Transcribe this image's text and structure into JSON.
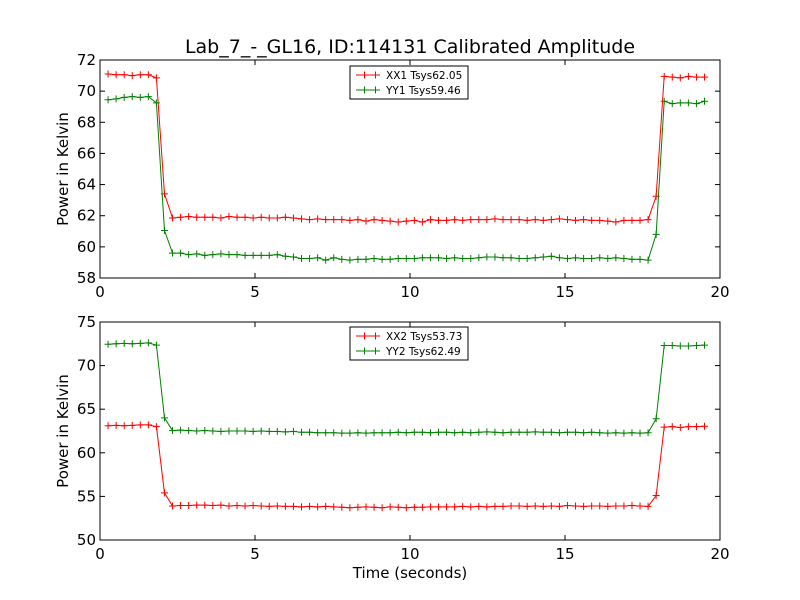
{
  "figure_title": "Lab_7_-_GL16, ID:114131 Calibrated Amplitude",
  "chart_data": [
    {
      "type": "line",
      "title": "",
      "xlabel": "",
      "ylabel": "Power in Kelvin",
      "xlim": [
        0,
        20
      ],
      "ylim": [
        58,
        72
      ],
      "xticks": [
        0,
        5,
        10,
        15,
        20
      ],
      "yticks": [
        58,
        60,
        62,
        64,
        66,
        68,
        70,
        72
      ],
      "grid": false,
      "legend_position": "top-center",
      "marker": "+",
      "x": [
        0.26,
        0.52,
        0.78,
        1.04,
        1.3,
        1.56,
        1.82,
        2.08,
        2.34,
        2.6,
        2.86,
        3.12,
        3.38,
        3.64,
        3.9,
        4.16,
        4.42,
        4.68,
        4.94,
        5.2,
        5.46,
        5.72,
        5.98,
        6.24,
        6.5,
        6.76,
        7.02,
        7.28,
        7.54,
        7.8,
        8.06,
        8.32,
        8.58,
        8.84,
        9.1,
        9.36,
        9.62,
        9.88,
        10.14,
        10.4,
        10.66,
        10.92,
        11.18,
        11.44,
        11.7,
        11.96,
        12.22,
        12.48,
        12.74,
        13.0,
        13.26,
        13.52,
        13.78,
        14.04,
        14.3,
        14.56,
        14.82,
        15.08,
        15.34,
        15.6,
        15.86,
        16.12,
        16.38,
        16.64,
        16.9,
        17.16,
        17.42,
        17.68,
        17.94,
        18.2,
        18.46,
        18.72,
        18.98,
        19.24,
        19.5
      ],
      "series": [
        {
          "name": "XX1 Tsys62.05",
          "color": "#ff0000",
          "values": [
            71.1,
            71.05,
            71.05,
            71.0,
            71.05,
            71.05,
            70.85,
            63.4,
            61.85,
            61.9,
            61.95,
            61.9,
            61.9,
            61.9,
            61.85,
            61.95,
            61.9,
            61.9,
            61.85,
            61.9,
            61.85,
            61.85,
            61.9,
            61.85,
            61.8,
            61.75,
            61.8,
            61.75,
            61.75,
            61.75,
            61.7,
            61.75,
            61.65,
            61.75,
            61.7,
            61.65,
            61.6,
            61.65,
            61.7,
            61.6,
            61.75,
            61.7,
            61.7,
            61.75,
            61.7,
            61.75,
            61.75,
            61.75,
            61.8,
            61.75,
            61.75,
            61.75,
            61.7,
            61.75,
            61.7,
            61.75,
            61.8,
            61.75,
            61.7,
            61.75,
            61.7,
            61.7,
            61.65,
            61.6,
            61.7,
            61.7,
            61.7,
            61.75,
            63.25,
            70.95,
            70.9,
            70.85,
            70.95,
            70.9,
            70.9
          ]
        },
        {
          "name": "YY1 Tsys59.46",
          "color": "#008000",
          "values": [
            69.45,
            69.5,
            69.6,
            69.65,
            69.6,
            69.65,
            69.25,
            61.05,
            59.6,
            59.6,
            59.5,
            59.55,
            59.45,
            59.5,
            59.55,
            59.5,
            59.5,
            59.45,
            59.45,
            59.45,
            59.45,
            59.5,
            59.4,
            59.35,
            59.25,
            59.25,
            59.3,
            59.15,
            59.3,
            59.2,
            59.15,
            59.2,
            59.2,
            59.25,
            59.2,
            59.2,
            59.25,
            59.25,
            59.25,
            59.3,
            59.3,
            59.3,
            59.25,
            59.3,
            59.25,
            59.25,
            59.3,
            59.35,
            59.35,
            59.3,
            59.3,
            59.25,
            59.25,
            59.3,
            59.35,
            59.4,
            59.3,
            59.25,
            59.3,
            59.25,
            59.25,
            59.3,
            59.25,
            59.3,
            59.25,
            59.2,
            59.2,
            59.15,
            60.8,
            69.35,
            69.2,
            69.25,
            69.25,
            69.2,
            69.35
          ]
        }
      ]
    },
    {
      "type": "line",
      "title": "",
      "xlabel": "Time (seconds)",
      "ylabel": "Power in Kelvin",
      "xlim": [
        0,
        20
      ],
      "ylim": [
        50,
        75
      ],
      "xticks": [
        0,
        5,
        10,
        15,
        20
      ],
      "yticks": [
        50,
        55,
        60,
        65,
        70,
        75
      ],
      "grid": false,
      "legend_position": "top-center",
      "marker": "+",
      "x": [
        0.26,
        0.52,
        0.78,
        1.04,
        1.3,
        1.56,
        1.82,
        2.08,
        2.34,
        2.6,
        2.86,
        3.12,
        3.38,
        3.64,
        3.9,
        4.16,
        4.42,
        4.68,
        4.94,
        5.2,
        5.46,
        5.72,
        5.98,
        6.24,
        6.5,
        6.76,
        7.02,
        7.28,
        7.54,
        7.8,
        8.06,
        8.32,
        8.58,
        8.84,
        9.1,
        9.36,
        9.62,
        9.88,
        10.14,
        10.4,
        10.66,
        10.92,
        11.18,
        11.44,
        11.7,
        11.96,
        12.22,
        12.48,
        12.74,
        13.0,
        13.26,
        13.52,
        13.78,
        14.04,
        14.3,
        14.56,
        14.82,
        15.08,
        15.34,
        15.6,
        15.86,
        16.12,
        16.38,
        16.64,
        16.9,
        17.16,
        17.42,
        17.68,
        17.94,
        18.2,
        18.46,
        18.72,
        18.98,
        19.24,
        19.5
      ],
      "series": [
        {
          "name": "XX2 Tsys53.73",
          "color": "#ff0000",
          "values": [
            63.1,
            63.15,
            63.1,
            63.15,
            63.2,
            63.2,
            63.0,
            55.4,
            53.9,
            53.95,
            53.95,
            54.0,
            54.0,
            53.95,
            54.0,
            53.9,
            53.95,
            53.9,
            53.95,
            53.9,
            53.85,
            53.9,
            53.85,
            53.85,
            53.8,
            53.85,
            53.8,
            53.85,
            53.8,
            53.75,
            53.7,
            53.75,
            53.8,
            53.75,
            53.7,
            53.8,
            53.75,
            53.7,
            53.75,
            53.75,
            53.8,
            53.8,
            53.8,
            53.8,
            53.85,
            53.8,
            53.85,
            53.8,
            53.85,
            53.85,
            53.9,
            53.9,
            53.85,
            53.9,
            53.85,
            53.9,
            53.85,
            53.95,
            53.9,
            53.85,
            53.9,
            53.9,
            53.85,
            53.9,
            53.9,
            53.95,
            53.9,
            53.85,
            55.1,
            62.95,
            63.0,
            62.9,
            63.0,
            63.0,
            63.05
          ]
        },
        {
          "name": "YY2 Tsys62.49",
          "color": "#008000",
          "values": [
            72.45,
            72.5,
            72.55,
            72.5,
            72.55,
            72.6,
            72.35,
            64.0,
            62.55,
            62.6,
            62.55,
            62.5,
            62.55,
            62.5,
            62.45,
            62.5,
            62.5,
            62.5,
            62.45,
            62.5,
            62.45,
            62.45,
            62.4,
            62.45,
            62.35,
            62.35,
            62.3,
            62.3,
            62.3,
            62.25,
            62.25,
            62.3,
            62.25,
            62.3,
            62.3,
            62.3,
            62.35,
            62.3,
            62.35,
            62.35,
            62.3,
            62.35,
            62.35,
            62.3,
            62.35,
            62.3,
            62.35,
            62.4,
            62.35,
            62.3,
            62.35,
            62.35,
            62.35,
            62.4,
            62.35,
            62.35,
            62.3,
            62.35,
            62.35,
            62.3,
            62.35,
            62.3,
            62.25,
            62.3,
            62.25,
            62.3,
            62.25,
            62.3,
            63.9,
            72.3,
            72.3,
            72.25,
            72.25,
            72.3,
            72.35
          ]
        }
      ]
    }
  ]
}
